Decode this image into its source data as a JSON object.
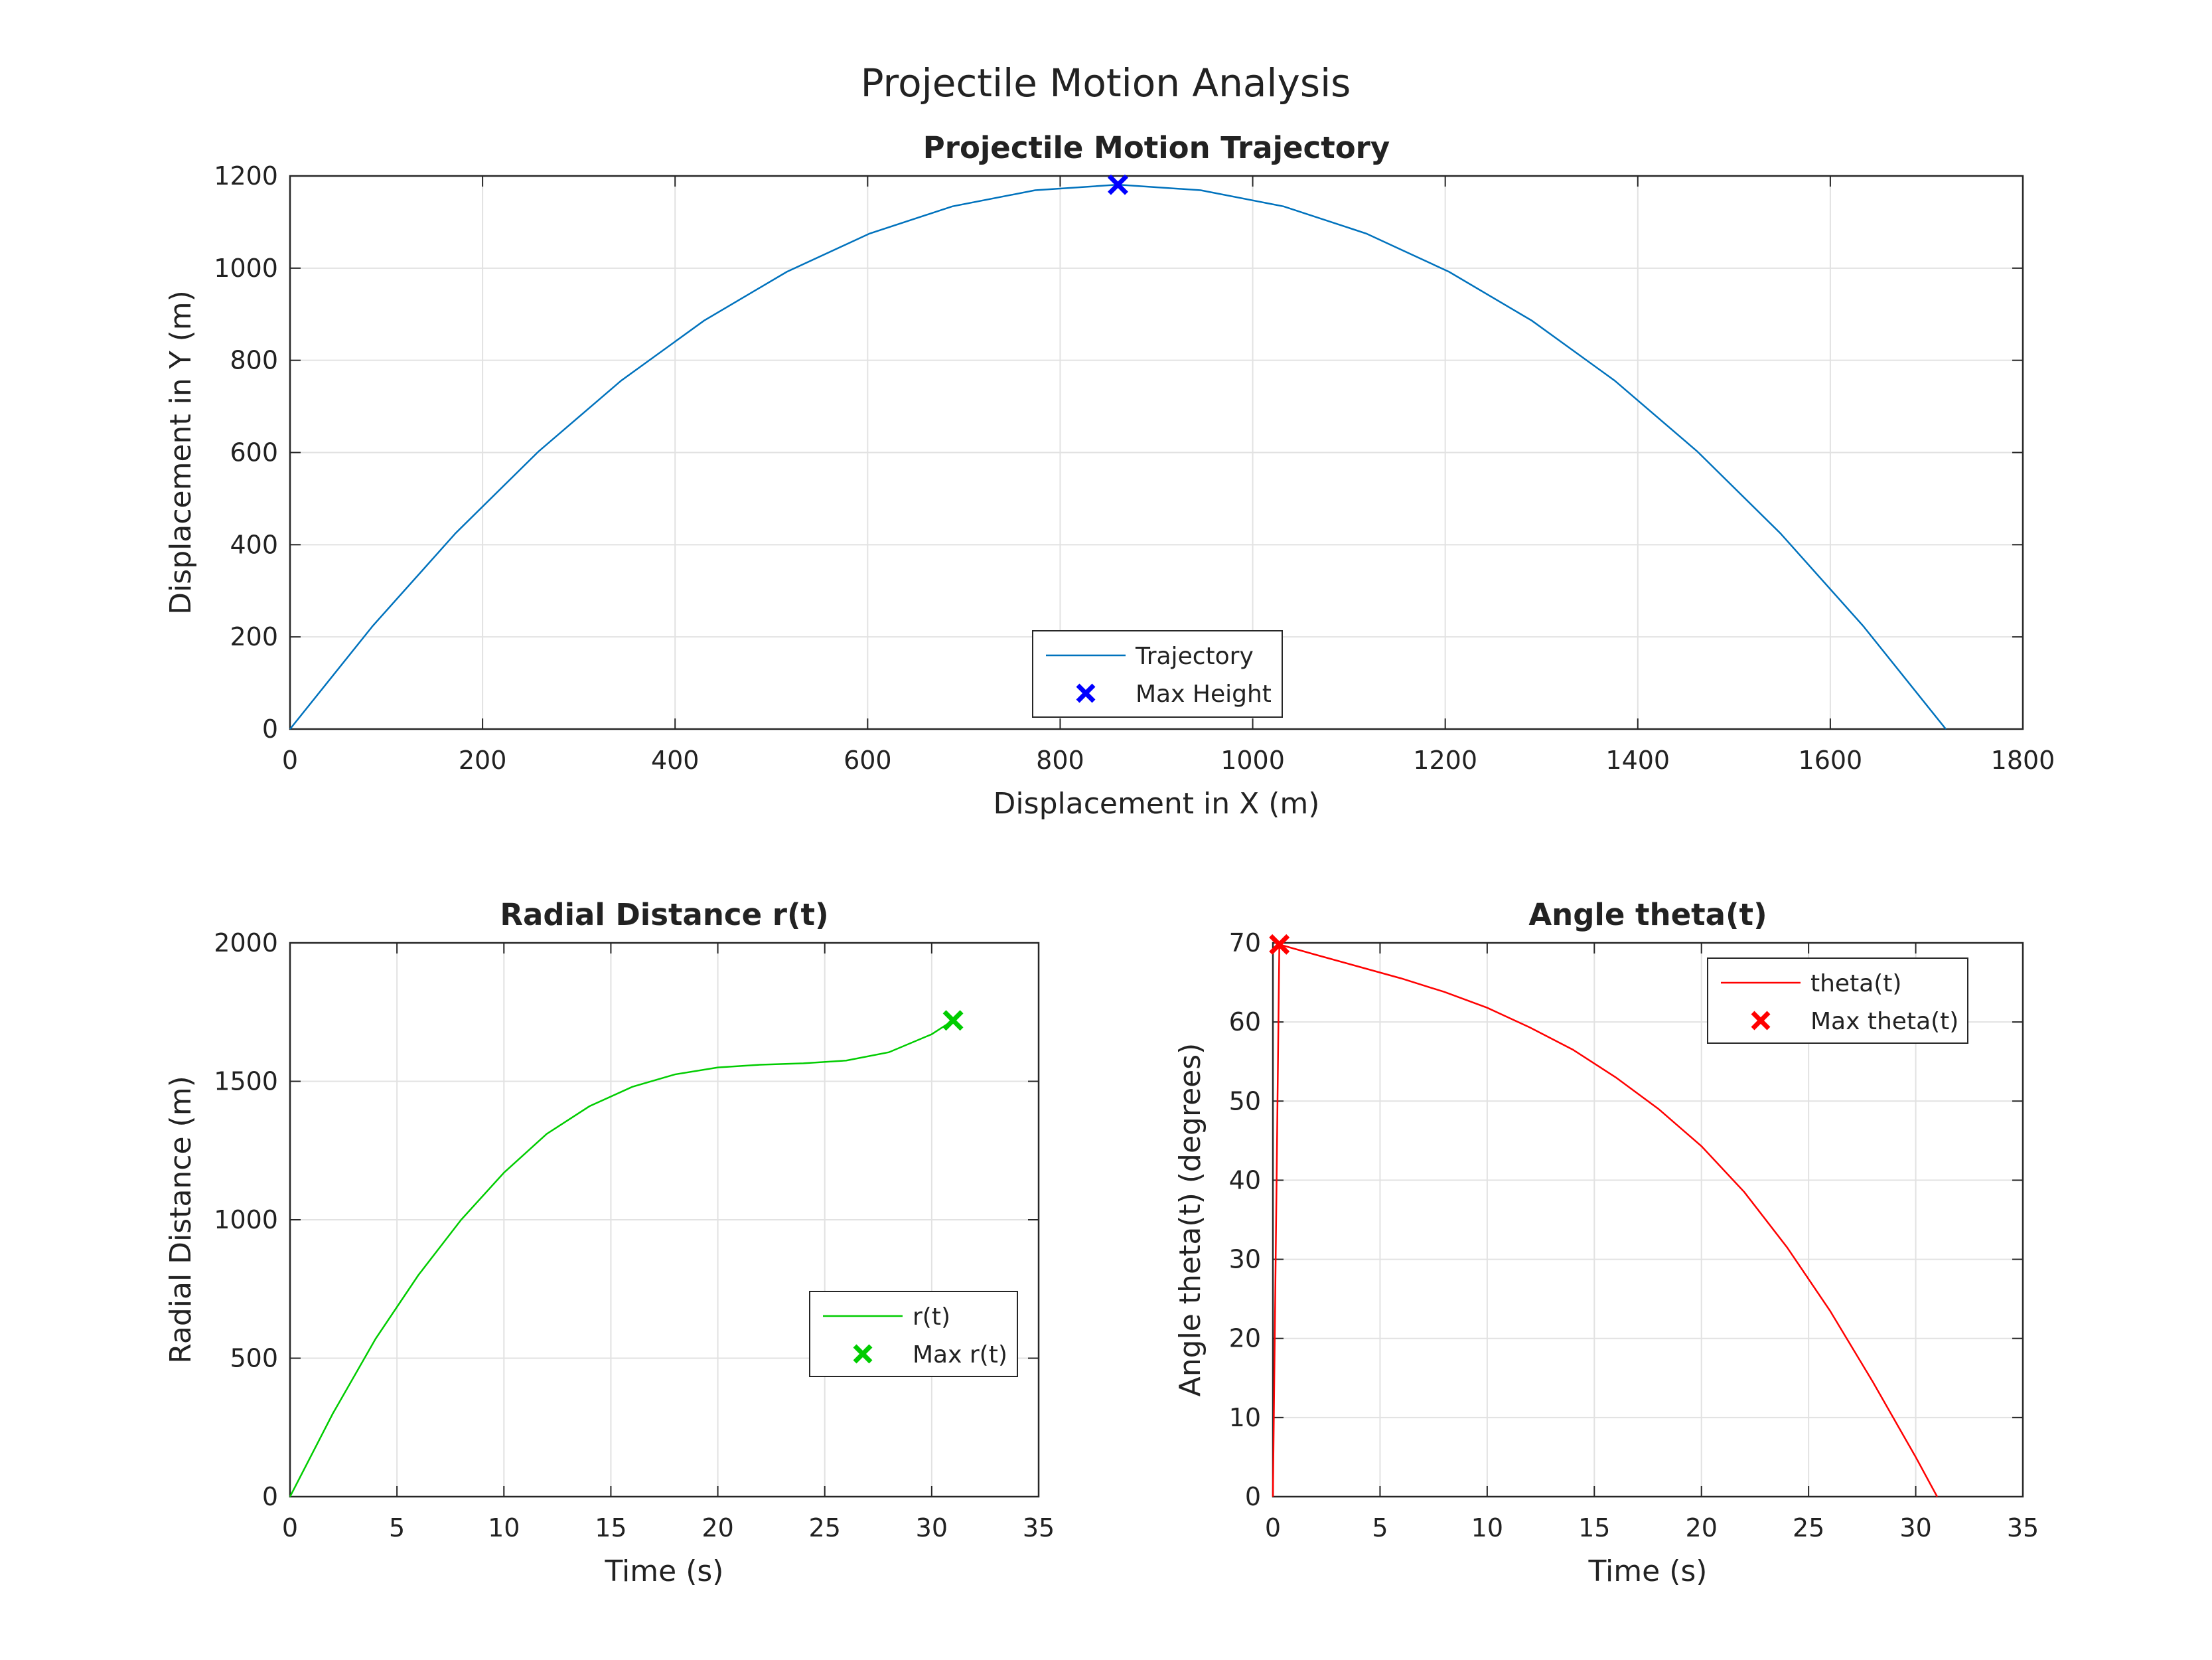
{
  "figure_title": "Projectile Motion Analysis",
  "chart_data": [
    {
      "type": "line",
      "title": "Projectile Motion Trajectory",
      "xlabel": "Displacement in X (m)",
      "ylabel": "Displacement in Y (m)",
      "xlim": [
        0,
        1800
      ],
      "ylim": [
        0,
        1200
      ],
      "xticks": [
        0,
        200,
        400,
        600,
        800,
        1000,
        1200,
        1400,
        1600,
        1800
      ],
      "yticks": [
        0,
        200,
        400,
        600,
        800,
        1000,
        1200
      ],
      "grid": true,
      "legend_position": "bottom-center",
      "series": [
        {
          "name": "Trajectory",
          "color": "#0072BD",
          "x": [
            0,
            86,
            172,
            258,
            344,
            430,
            516,
            602,
            688,
            774,
            860,
            946,
            1032,
            1118,
            1204,
            1290,
            1376,
            1462,
            1548,
            1634,
            1720
          ],
          "y": [
            0,
            224,
            425,
            602,
            756,
            886,
            992,
            1075,
            1134,
            1169,
            1181,
            1169,
            1134,
            1075,
            992,
            886,
            756,
            602,
            425,
            224,
            0
          ]
        },
        {
          "name": "Max Height",
          "marker": "x",
          "color": "#0000FF",
          "x": [
            860
          ],
          "y": [
            1181
          ]
        }
      ]
    },
    {
      "type": "line",
      "title": "Radial Distance r(t)",
      "xlabel": "Time (s)",
      "ylabel": "Radial Distance (m)",
      "xlim": [
        0,
        35
      ],
      "ylim": [
        0,
        2000
      ],
      "xticks": [
        0,
        5,
        10,
        15,
        20,
        25,
        30,
        35
      ],
      "yticks": [
        0,
        500,
        1000,
        1500,
        2000
      ],
      "grid": true,
      "legend_position": "bottom-right",
      "series": [
        {
          "name": "r(t)",
          "color": "#00CC00",
          "x": [
            0,
            2,
            4,
            6,
            8,
            10,
            12,
            14,
            16,
            18,
            20,
            22,
            24,
            26,
            28,
            30,
            31
          ],
          "y": [
            0,
            300,
            570,
            800,
            1000,
            1170,
            1310,
            1410,
            1480,
            1525,
            1550,
            1560,
            1565,
            1575,
            1605,
            1670,
            1720
          ]
        },
        {
          "name": "Max r(t)",
          "marker": "x",
          "color": "#00CC00",
          "x": [
            31
          ],
          "y": [
            1720
          ]
        }
      ]
    },
    {
      "type": "line",
      "title": "Angle theta(t)",
      "xlabel": "Time (s)",
      "ylabel": "Angle theta(t) (degrees)",
      "xlim": [
        0,
        35
      ],
      "ylim": [
        0,
        70
      ],
      "xticks": [
        0,
        5,
        10,
        15,
        20,
        25,
        30,
        35
      ],
      "yticks": [
        0,
        10,
        20,
        30,
        40,
        50,
        60,
        70
      ],
      "grid": true,
      "legend_position": "top-right",
      "series": [
        {
          "name": "theta(t)",
          "color": "#FF0000",
          "x": [
            0,
            0.3,
            2,
            4,
            6,
            8,
            10,
            12,
            14,
            16,
            18,
            20,
            22,
            24,
            26,
            28,
            30,
            31
          ],
          "y": [
            0,
            69.8,
            68.5,
            67,
            65.5,
            63.8,
            61.8,
            59.3,
            56.5,
            53,
            49,
            44.3,
            38.5,
            31.5,
            23.5,
            14.5,
            5,
            0
          ]
        },
        {
          "name": "Max theta(t)",
          "marker": "x",
          "color": "#FF0000",
          "x": [
            0.3
          ],
          "y": [
            69.8
          ]
        }
      ]
    }
  ]
}
